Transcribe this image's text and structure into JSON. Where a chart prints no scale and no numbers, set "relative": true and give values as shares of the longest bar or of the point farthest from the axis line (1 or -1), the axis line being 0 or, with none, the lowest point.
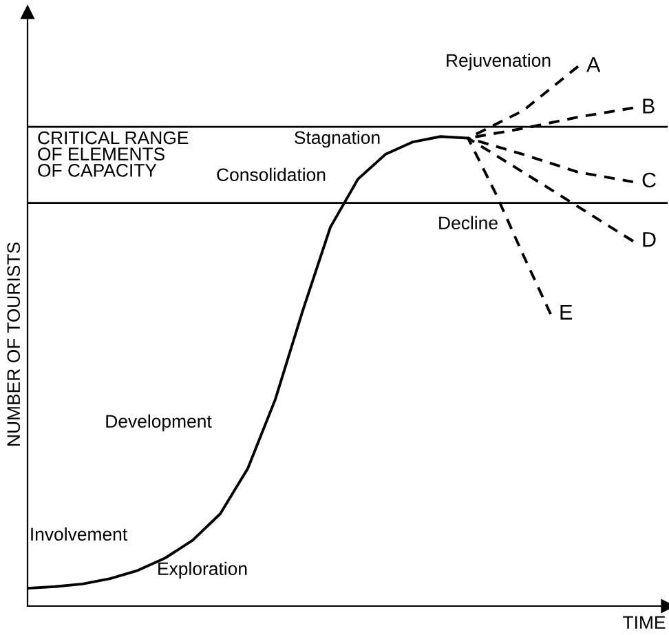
{
  "chart_data": {
    "type": "line",
    "relative": true,
    "xlabel": "TIME",
    "ylabel": "NUMBER OF TOURISTS",
    "tick_labels": false,
    "legend": false,
    "marker": "none",
    "categories": [
      null,
      null,
      null,
      null,
      null,
      null,
      null,
      null,
      null,
      null,
      null,
      null,
      null,
      null,
      null,
      null,
      null,
      null,
      null,
      null,
      null,
      null,
      null,
      null
    ],
    "series": [
      {
        "color": "#000000",
        "line_style": "solid",
        "values": [
          0.033,
          0.036,
          0.041,
          0.051,
          0.066,
          0.089,
          0.122,
          0.171,
          0.255,
          0.383,
          0.548,
          0.702,
          0.791,
          0.837,
          0.86,
          0.87,
          0.867,
          null,
          null,
          null,
          null,
          null,
          null,
          null
        ]
      },
      {
        "name": "A",
        "color": "#000000",
        "line_style": "dashed",
        "values": [
          null,
          null,
          null,
          null,
          null,
          null,
          null,
          null,
          null,
          null,
          null,
          null,
          null,
          null,
          null,
          null,
          0.867,
          null,
          0.918,
          null,
          1.0,
          null,
          null,
          null
        ]
      },
      {
        "name": "B",
        "color": "#000000",
        "line_style": "dashed",
        "values": [
          null,
          null,
          null,
          null,
          null,
          null,
          null,
          null,
          null,
          null,
          null,
          null,
          null,
          null,
          null,
          null,
          0.867,
          null,
          0.885,
          null,
          0.906,
          null,
          0.923,
          null
        ]
      },
      {
        "name": "C",
        "color": "#000000",
        "line_style": "dashed",
        "values": [
          null,
          null,
          null,
          null,
          null,
          null,
          null,
          null,
          null,
          null,
          null,
          null,
          null,
          null,
          null,
          null,
          0.867,
          null,
          0.837,
          null,
          0.804,
          null,
          0.786,
          null
        ]
      },
      {
        "name": "D",
        "color": "#000000",
        "line_style": "dashed",
        "values": [
          null,
          null,
          null,
          null,
          null,
          null,
          null,
          null,
          null,
          null,
          null,
          null,
          null,
          null,
          null,
          null,
          0.867,
          null,
          0.804,
          null,
          0.74,
          null,
          0.676,
          null
        ]
      },
      {
        "name": "E",
        "color": "#000000",
        "line_style": "dashed",
        "values": [
          null,
          null,
          null,
          null,
          null,
          null,
          null,
          null,
          null,
          null,
          null,
          null,
          null,
          null,
          null,
          null,
          0.867,
          0.765,
          0.651,
          0.541,
          null,
          null,
          null,
          null
        ]
      }
    ],
    "ref_lines": [
      {
        "axis": "y",
        "value": 0.888,
        "label": "CRITICAL RANGE\nOF ELEMENTS\nOF CAPACITY",
        "color": "#000000"
      },
      {
        "axis": "y",
        "value": 0.747,
        "color": "#000000"
      }
    ],
    "annotations": [
      "Rejuvenation",
      "Stagnation",
      "Consolidation",
      "Decline",
      "Development",
      "Involvement",
      "Exploration"
    ]
  }
}
